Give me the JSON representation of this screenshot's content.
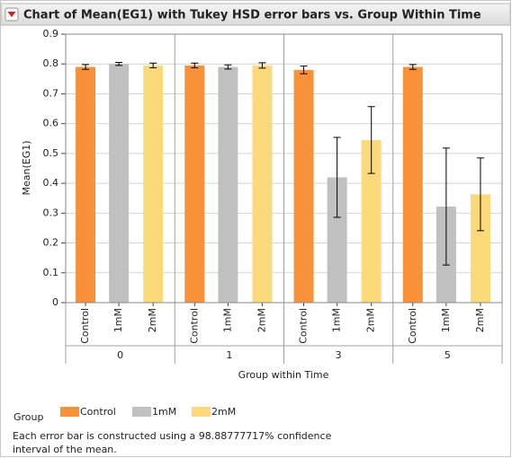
{
  "chart_data": {
    "type": "bar",
    "title": "Chart of Mean(EG1) with Tukey HSD error bars vs. Group Within Time",
    "ylabel": "Mean(EG1)",
    "xlabel": "Group within Time",
    "legend_title": "Group",
    "groups": [
      "0",
      "1",
      "3",
      "5"
    ],
    "series": [
      {
        "name": "Control",
        "color": "#f8923a",
        "values": [
          0.79,
          0.795,
          0.78,
          0.79
        ],
        "errors": [
          0.008,
          0.008,
          0.013,
          0.008
        ]
      },
      {
        "name": "1mM",
        "color": "#c0c0c0",
        "values": [
          0.8,
          0.79,
          0.42,
          0.322
        ],
        "errors": [
          0.005,
          0.007,
          0.134,
          0.196
        ]
      },
      {
        "name": "2mM",
        "color": "#fcd97b",
        "values": [
          0.795,
          0.795,
          0.545,
          0.363
        ],
        "errors": [
          0.008,
          0.009,
          0.112,
          0.122
        ]
      }
    ],
    "ylim": [
      0,
      0.9
    ],
    "yticks": [
      0,
      0.1,
      0.2,
      0.3,
      0.4,
      0.5,
      0.6,
      0.7,
      0.8,
      0.9
    ],
    "grid": true,
    "note": "Each error bar is constructed using a 98.88777717% confidence interval of the mean."
  }
}
